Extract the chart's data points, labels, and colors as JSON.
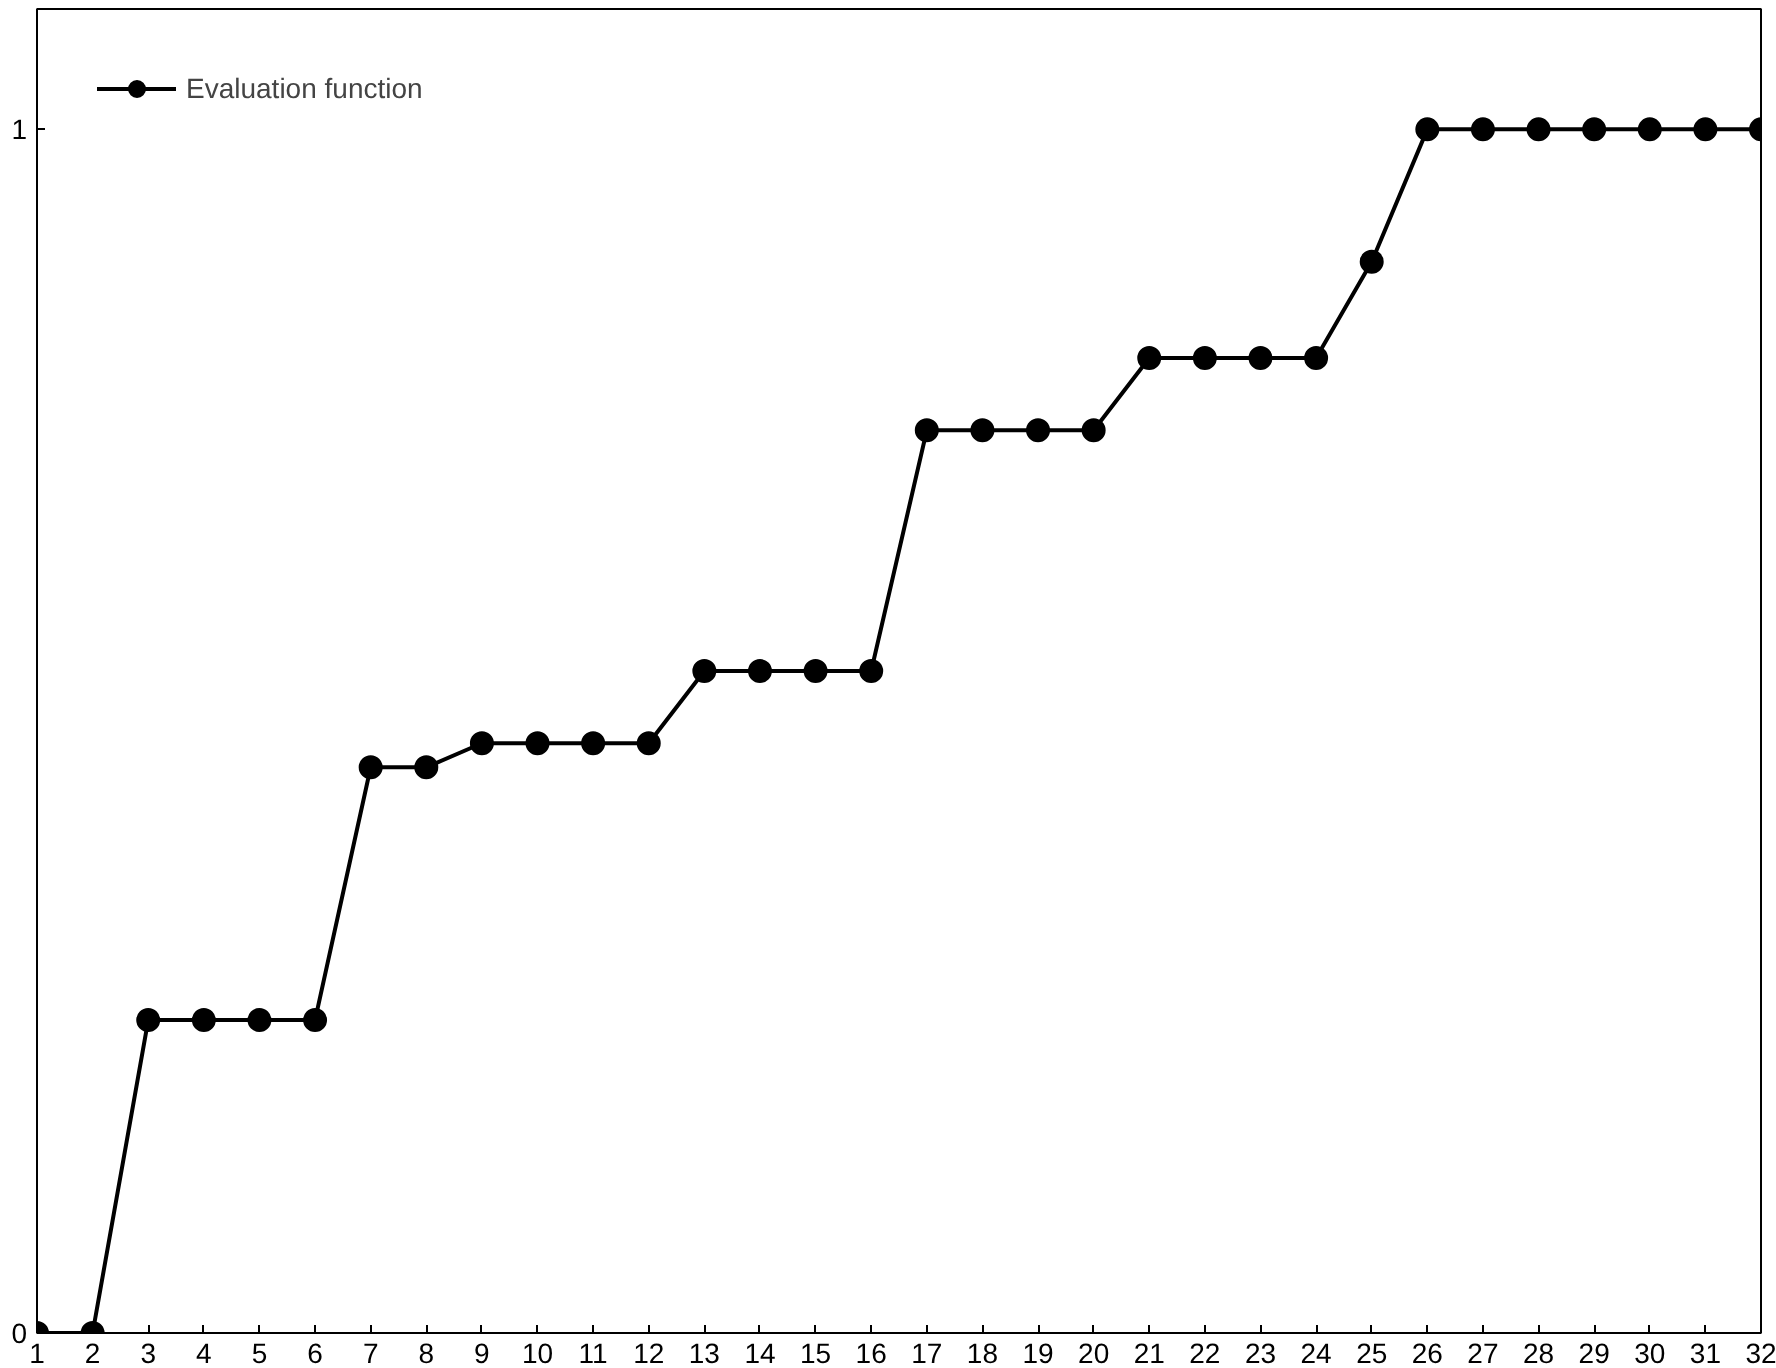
{
  "chart_data": {
    "type": "line",
    "x": [
      1,
      2,
      3,
      4,
      5,
      6,
      7,
      8,
      9,
      10,
      11,
      12,
      13,
      14,
      15,
      16,
      17,
      18,
      19,
      20,
      21,
      22,
      23,
      24,
      25,
      26,
      27,
      28,
      29,
      30,
      31,
      32
    ],
    "series": [
      {
        "name": "Evaluation function",
        "color": "#000000",
        "values": [
          0,
          0,
          0.26,
          0.26,
          0.26,
          0.26,
          0.47,
          0.47,
          0.49,
          0.49,
          0.49,
          0.49,
          0.55,
          0.55,
          0.55,
          0.55,
          0.75,
          0.75,
          0.75,
          0.75,
          0.81,
          0.81,
          0.81,
          0.81,
          0.89,
          1,
          1,
          1,
          1,
          1,
          1,
          1
        ]
      }
    ],
    "xlim": [
      1,
      32
    ],
    "xticks": [
      1,
      2,
      3,
      4,
      5,
      6,
      7,
      8,
      9,
      10,
      11,
      12,
      13,
      14,
      15,
      16,
      17,
      18,
      19,
      20,
      21,
      22,
      23,
      24,
      25,
      26,
      27,
      28,
      29,
      30,
      31,
      32
    ],
    "ylim": [
      0,
      1.1
    ],
    "yticks": [
      0,
      1
    ],
    "grid": false,
    "legend": "top left",
    "marker": "circle",
    "line_style": "solid"
  }
}
